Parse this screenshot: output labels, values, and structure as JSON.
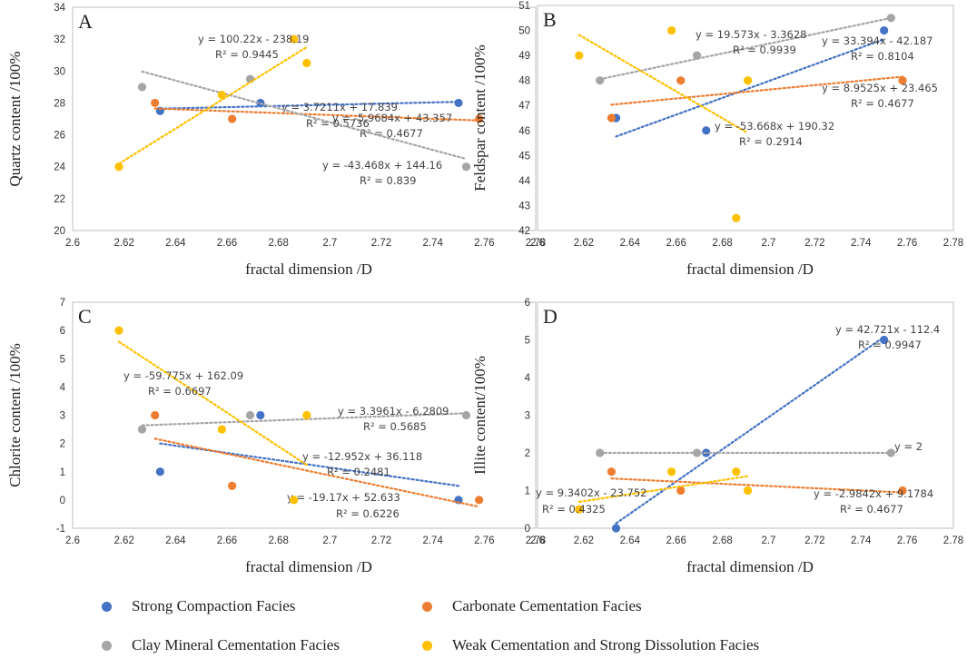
{
  "colors": {
    "strong_compaction": "#4472C4",
    "carbonate": "#ED7D31",
    "clay": "#A5A5A5",
    "weak_cementation": "#FFC000"
  },
  "legend": [
    {
      "key": "strong_compaction",
      "label": "Strong Compaction Facies"
    },
    {
      "key": "carbonate",
      "label": "Carbonate Cementation Facies"
    },
    {
      "key": "clay",
      "label": "Clay Mineral Cementation Facies"
    },
    {
      "key": "weak_cementation",
      "label": "Weak Cementation and Strong Dissolution Facies"
    }
  ],
  "chart_data": [
    {
      "type": "scatter",
      "panel": "A",
      "xlabel": "fractal dimension /D",
      "ylabel": "Quartz content /100%",
      "xlim": [
        2.6,
        2.78
      ],
      "ylim": [
        20,
        34
      ],
      "xticks": [
        "2.6",
        "2.62",
        "2.64",
        "2.66",
        "2.68",
        "2.7",
        "2.72",
        "2.74",
        "2.76",
        "2.78"
      ],
      "yticks": [
        "20",
        "22",
        "24",
        "26",
        "28",
        "30",
        "32",
        "34"
      ],
      "series": [
        {
          "key": "strong_compaction",
          "x": [
            2.634,
            2.673,
            2.75
          ],
          "y": [
            27.5,
            28,
            28
          ],
          "trend": [
            [
              2.634,
              27.64
            ],
            [
              2.75,
              28.07
            ]
          ],
          "eq": "y = 3.7211x + 17.839",
          "r2": "R² = 0.5736"
        },
        {
          "key": "carbonate",
          "x": [
            2.632,
            2.662,
            2.758
          ],
          "y": [
            28,
            27,
            27
          ],
          "trend": [
            [
              2.632,
              27.65
            ],
            [
              2.758,
              26.9
            ]
          ],
          "eq": "y = -5.9684x + 43.357",
          "r2": "R² = 0.4677"
        },
        {
          "key": "clay",
          "x": [
            2.627,
            2.669,
            2.753
          ],
          "y": [
            29,
            29.5,
            24
          ],
          "trend": [
            [
              2.627,
              29.97
            ],
            [
              2.753,
              24.49
            ]
          ],
          "eq": "y = -43.468x + 144.16",
          "r2": "R² = 0.839"
        },
        {
          "key": "weak_cementation",
          "x": [
            2.618,
            2.658,
            2.686,
            2.691
          ],
          "y": [
            24,
            28.5,
            32,
            30.5
          ],
          "trend": [
            [
              2.618,
              24.19
            ],
            [
              2.691,
              31.5
            ]
          ],
          "eq": "y = 100.22x - 238.19",
          "r2": "R² = 0.9445"
        }
      ]
    },
    {
      "type": "scatter",
      "panel": "B",
      "xlabel": "fractal dimension /D",
      "ylabel": "Feldspar content /100%",
      "xlim": [
        2.6,
        2.78
      ],
      "ylim": [
        42,
        51
      ],
      "xticks": [
        "2.6",
        "2.62",
        "2.64",
        "2.66",
        "2.68",
        "2.7",
        "2.72",
        "2.74",
        "2.76",
        "2.78"
      ],
      "yticks": [
        "42",
        "43",
        "44",
        "45",
        "46",
        "47",
        "48",
        "49",
        "50",
        "51"
      ],
      "series": [
        {
          "key": "strong_compaction",
          "x": [
            2.634,
            2.673,
            2.75
          ],
          "y": [
            46.5,
            46,
            50
          ],
          "trend": [
            [
              2.634,
              45.76
            ],
            [
              2.75,
              49.65
            ]
          ],
          "eq": "y = 33.394x - 42.187",
          "r2": "R² = 0.8104"
        },
        {
          "key": "carbonate",
          "x": [
            2.632,
            2.662,
            2.758
          ],
          "y": [
            46.5,
            48,
            48
          ],
          "trend": [
            [
              2.632,
              47.03
            ],
            [
              2.758,
              48.15
            ]
          ],
          "eq": "y = 8.9525x + 23.465",
          "r2": "R² = 0.4677"
        },
        {
          "key": "clay",
          "x": [
            2.627,
            2.669,
            2.753
          ],
          "y": [
            48,
            49,
            50.5
          ],
          "trend": [
            [
              2.627,
              48.05
            ],
            [
              2.753,
              50.5
            ]
          ],
          "eq": "y = 19.573x - 3.3628",
          "r2": "R² = 0.9939"
        },
        {
          "key": "weak_cementation",
          "x": [
            2.618,
            2.658,
            2.686,
            2.691
          ],
          "y": [
            49,
            50,
            42.5,
            48
          ],
          "trend": [
            [
              2.618,
              49.82
            ],
            [
              2.691,
              45.9
            ]
          ],
          "eq": "y = -53.668x + 190.32",
          "r2": "R² = 0.2914"
        }
      ]
    },
    {
      "type": "scatter",
      "panel": "C",
      "xlabel": "fractal dimension /D",
      "ylabel": "Chlorite content /100%",
      "xlim": [
        2.6,
        2.78
      ],
      "ylim": [
        -1,
        7
      ],
      "xticks": [
        "2.6",
        "2.62",
        "2.64",
        "2.66",
        "2.68",
        "2.7",
        "2.72",
        "2.74",
        "2.76",
        "2.78"
      ],
      "yticks": [
        "-1",
        "0",
        "1",
        "2",
        "3",
        "4",
        "5",
        "6",
        "7"
      ],
      "series": [
        {
          "key": "strong_compaction",
          "x": [
            2.634,
            2.673,
            2.75
          ],
          "y": [
            1,
            3,
            0
          ],
          "trend": [
            [
              2.634,
              2.0
            ],
            [
              2.75,
              0.5
            ]
          ],
          "eq": "y = -12.952x + 36.118",
          "r2": "R² = 0.2481"
        },
        {
          "key": "carbonate",
          "x": [
            2.632,
            2.662,
            2.758
          ],
          "y": [
            3,
            0.5,
            0
          ],
          "trend": [
            [
              2.632,
              2.17
            ],
            [
              2.758,
              -0.24
            ]
          ],
          "eq": "y = -19.17x + 52.633",
          "r2": "R² = 0.6226"
        },
        {
          "key": "clay",
          "x": [
            2.627,
            2.669,
            2.753
          ],
          "y": [
            2.5,
            3,
            3
          ],
          "trend": [
            [
              2.627,
              2.64
            ],
            [
              2.753,
              3.07
            ]
          ],
          "eq": "y = 3.3961x - 6.2809",
          "r2": "R² = 0.5685"
        },
        {
          "key": "weak_cementation",
          "x": [
            2.618,
            2.658,
            2.686,
            2.691
          ],
          "y": [
            6,
            2.5,
            0,
            3
          ],
          "trend": [
            [
              2.618,
              5.6
            ],
            [
              2.691,
              1.24
            ]
          ],
          "eq": "y = -59.775x + 162.09",
          "r2": "R² = 0.6697"
        }
      ]
    },
    {
      "type": "scatter",
      "panel": "D",
      "xlabel": "fractal dimension /D",
      "ylabel": "Illite content/100%",
      "xlim": [
        2.6,
        2.78
      ],
      "ylim": [
        0,
        6
      ],
      "xticks": [
        "2.6",
        "2.62",
        "2.64",
        "2.66",
        "2.68",
        "2.7",
        "2.72",
        "2.74",
        "2.76",
        "2.78"
      ],
      "yticks": [
        "0",
        "1",
        "2",
        "3",
        "4",
        "5",
        "6"
      ],
      "series": [
        {
          "key": "strong_compaction",
          "x": [
            2.634,
            2.673,
            2.75
          ],
          "y": [
            0,
            2,
            5
          ],
          "trend": [
            [
              2.634,
              0.13
            ],
            [
              2.75,
              5.08
            ]
          ],
          "eq": "y = 42.721x - 112.4",
          "r2": "R² = 0.9947"
        },
        {
          "key": "carbonate",
          "x": [
            2.632,
            2.662,
            2.758
          ],
          "y": [
            1.5,
            1,
            1
          ],
          "trend": [
            [
              2.632,
              1.32
            ],
            [
              2.758,
              0.95
            ]
          ],
          "eq": "y = -2.9842x + 9.1784",
          "r2": "R² = 0.4677"
        },
        {
          "key": "clay",
          "x": [
            2.627,
            2.669,
            2.753
          ],
          "y": [
            2,
            2,
            2
          ],
          "trend": [
            [
              2.627,
              2
            ],
            [
              2.753,
              2
            ]
          ],
          "eq": "y = 2",
          "r2": ""
        },
        {
          "key": "weak_cementation",
          "x": [
            2.618,
            2.658,
            2.686,
            2.691
          ],
          "y": [
            0.5,
            1.5,
            1.5,
            1
          ],
          "trend": [
            [
              2.618,
              0.7
            ],
            [
              2.691,
              1.38
            ]
          ],
          "eq": "y = 9.3402x - 23.752",
          "r2": "R² = 0.4325"
        }
      ]
    }
  ]
}
